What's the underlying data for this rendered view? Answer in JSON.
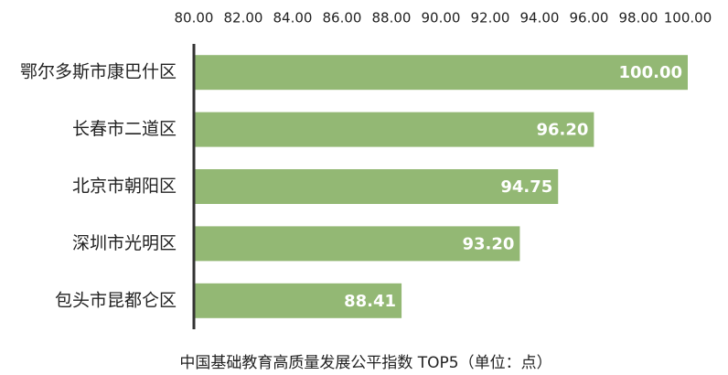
{
  "chart_data": {
    "type": "bar",
    "orientation": "horizontal",
    "title": "中国基础教育高质量发展公平指数 TOP5（单位：点）",
    "categories": [
      "鄂尔多斯市康巴什区",
      "长春市二道区",
      "北京市朝阳区",
      "深圳市光明区",
      "包头市昆都仑区"
    ],
    "values": [
      100.0,
      96.2,
      94.75,
      93.2,
      88.41
    ],
    "value_labels": [
      "100.00",
      "96.20",
      "94.75",
      "93.20",
      "88.41"
    ],
    "color": "#93b874",
    "xlim": [
      80,
      100
    ],
    "xticks": [
      {
        "value": 80,
        "label": "80.00"
      },
      {
        "value": 82,
        "label": "82.00"
      },
      {
        "value": 84,
        "label": "84.00"
      },
      {
        "value": 86,
        "label": "86.00"
      },
      {
        "value": 88,
        "label": "88.00"
      },
      {
        "value": 90,
        "label": "90.00"
      },
      {
        "value": 92,
        "label": "92.00"
      },
      {
        "value": 94,
        "label": "94.00"
      },
      {
        "value": 96,
        "label": "96.00"
      },
      {
        "value": 98,
        "label": "98.00"
      },
      {
        "value": 100,
        "label": "100.00"
      }
    ],
    "grid": false
  }
}
